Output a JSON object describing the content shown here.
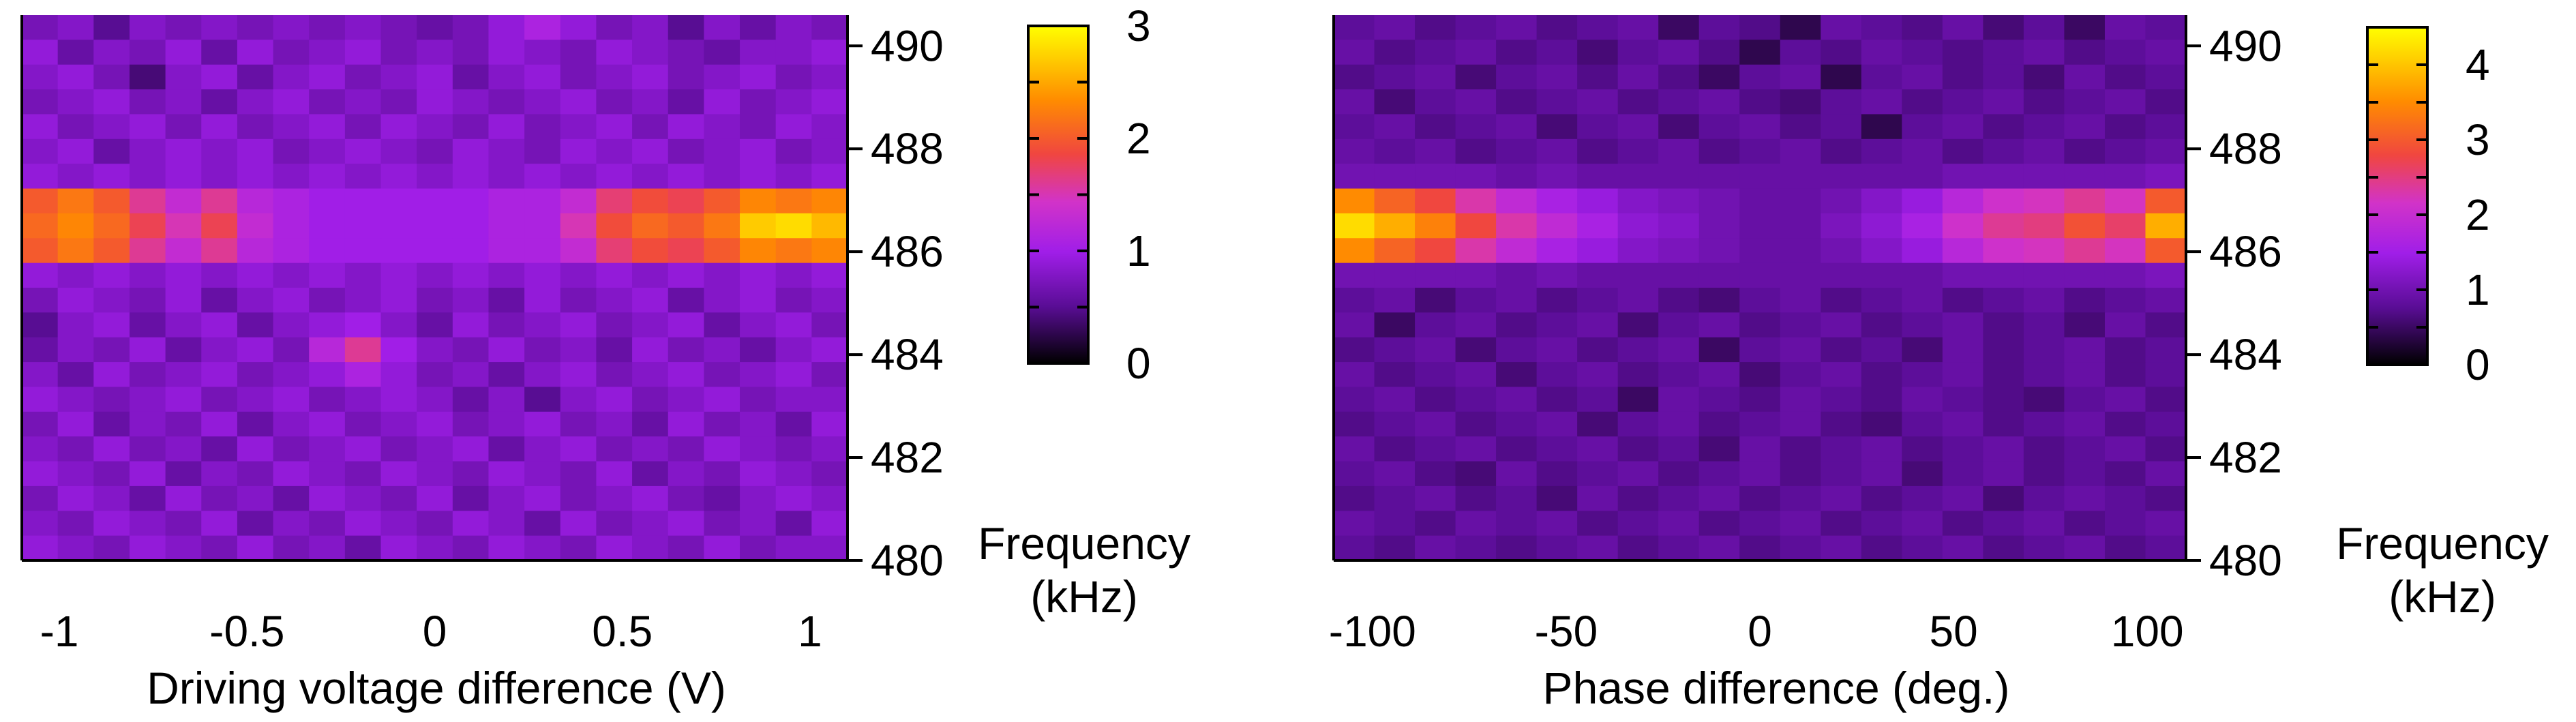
{
  "chart_data": [
    {
      "type": "heatmap",
      "name": "left",
      "xlabel": "Driving voltage difference (V)",
      "ylabel": "Frequency (kHz)",
      "ylabel_lines": [
        "Frequency",
        "(kHz)"
      ],
      "xlim": [
        -1.1,
        1.1
      ],
      "ylim": [
        480,
        490.6
      ],
      "x_ticks": [
        -1,
        -0.5,
        0,
        0.5,
        1
      ],
      "x_tick_labels": [
        "-1",
        "-0.5",
        "0",
        "0.5",
        "1"
      ],
      "y_ticks": [
        480,
        482,
        484,
        486,
        488,
        490
      ],
      "y_tick_labels": [
        "480",
        "482",
        "484",
        "486",
        "488",
        "490"
      ],
      "colorbar": {
        "range": [
          0,
          3
        ],
        "ticks": [
          0,
          1,
          2,
          3
        ],
        "tick_labels": [
          "0",
          "1",
          "2",
          "3"
        ],
        "minor_ticks": [
          0.5,
          1.5,
          2.5
        ]
      },
      "x_columns": [
        -1.1,
        -1.0,
        -0.9,
        -0.8,
        -0.7,
        -0.6,
        -0.5,
        -0.4,
        -0.3,
        -0.2,
        -0.1,
        0.0,
        0.1,
        0.2,
        0.3,
        0.4,
        0.5,
        0.6,
        0.7,
        0.8,
        0.9,
        1.0,
        1.1
      ],
      "y_rows": [
        490.5,
        490,
        489.5,
        489,
        488.5,
        488,
        487.5,
        487,
        486.5,
        486,
        485.5,
        485,
        484.5,
        484,
        483.5,
        483,
        482.5,
        482,
        481.5,
        481,
        480.5,
        480
      ],
      "z": [
        [
          0.7,
          0.8,
          0.5,
          0.8,
          0.7,
          0.8,
          0.7,
          0.8,
          0.7,
          0.8,
          0.7,
          0.6,
          0.7,
          0.9,
          1.1,
          0.9,
          0.7,
          0.8,
          0.5,
          0.8,
          0.6,
          0.8,
          0.7
        ],
        [
          0.9,
          0.6,
          0.8,
          0.7,
          0.9,
          0.6,
          0.9,
          0.7,
          0.8,
          0.9,
          0.7,
          0.8,
          0.7,
          0.9,
          0.8,
          0.7,
          0.9,
          0.8,
          0.7,
          0.6,
          0.8,
          0.8,
          0.9
        ],
        [
          0.8,
          0.9,
          0.7,
          0.4,
          0.8,
          0.9,
          0.6,
          0.8,
          0.9,
          0.7,
          0.8,
          0.9,
          0.6,
          0.8,
          0.9,
          0.7,
          0.8,
          0.9,
          0.7,
          0.8,
          0.9,
          0.7,
          0.8
        ],
        [
          0.7,
          0.8,
          0.9,
          0.7,
          0.8,
          0.6,
          0.8,
          0.9,
          0.7,
          0.8,
          0.7,
          0.9,
          0.8,
          0.7,
          0.8,
          0.9,
          0.7,
          0.8,
          0.6,
          0.9,
          0.7,
          0.8,
          0.9
        ],
        [
          0.9,
          0.7,
          0.8,
          0.9,
          0.7,
          0.9,
          0.7,
          0.8,
          0.9,
          0.7,
          0.9,
          0.8,
          0.7,
          0.9,
          0.7,
          0.8,
          0.9,
          0.7,
          0.9,
          0.8,
          0.7,
          0.9,
          0.8
        ],
        [
          0.8,
          0.9,
          0.6,
          0.8,
          0.9,
          0.8,
          0.9,
          0.7,
          0.8,
          0.9,
          0.8,
          0.7,
          0.9,
          0.8,
          0.7,
          0.9,
          0.8,
          0.9,
          0.7,
          0.8,
          0.9,
          0.7,
          0.8
        ],
        [
          0.9,
          0.8,
          0.9,
          0.8,
          0.9,
          0.8,
          0.9,
          0.8,
          0.9,
          0.8,
          0.9,
          0.8,
          0.9,
          0.8,
          0.9,
          0.8,
          0.9,
          0.8,
          0.9,
          0.8,
          0.9,
          0.8,
          0.9
        ],
        [
          2.0,
          2.2,
          2.0,
          1.6,
          1.3,
          1.6,
          1.2,
          1.1,
          1.0,
          1.0,
          1.0,
          1.0,
          1.0,
          1.1,
          1.1,
          1.3,
          1.7,
          1.9,
          1.8,
          2.0,
          2.3,
          2.2,
          2.3
        ],
        [
          2.1,
          2.3,
          2.1,
          1.8,
          1.5,
          1.8,
          1.3,
          1.1,
          1.0,
          1.0,
          1.0,
          1.0,
          1.0,
          1.1,
          1.1,
          1.5,
          1.9,
          2.1,
          2.0,
          2.2,
          2.7,
          2.8,
          2.6
        ],
        [
          2.0,
          2.2,
          2.0,
          1.6,
          1.3,
          1.6,
          1.2,
          1.1,
          1.0,
          1.0,
          1.0,
          1.0,
          1.0,
          1.1,
          1.1,
          1.3,
          1.7,
          1.9,
          1.8,
          2.0,
          2.3,
          2.2,
          2.3
        ],
        [
          0.9,
          0.8,
          0.9,
          0.8,
          0.9,
          0.8,
          0.9,
          0.8,
          0.9,
          0.8,
          0.9,
          0.8,
          0.9,
          0.8,
          0.9,
          0.8,
          0.9,
          0.8,
          0.9,
          0.8,
          0.9,
          0.8,
          0.9
        ],
        [
          0.7,
          0.9,
          0.8,
          0.7,
          0.9,
          0.6,
          0.8,
          0.9,
          0.7,
          0.8,
          0.9,
          0.7,
          0.8,
          0.6,
          0.9,
          0.7,
          0.8,
          0.9,
          0.6,
          0.8,
          0.9,
          0.7,
          0.8
        ],
        [
          0.5,
          0.8,
          0.9,
          0.6,
          0.8,
          0.9,
          0.6,
          0.8,
          0.9,
          1.0,
          0.8,
          0.6,
          0.9,
          0.7,
          0.8,
          0.9,
          0.7,
          0.8,
          0.9,
          0.6,
          0.8,
          0.9,
          0.7
        ],
        [
          0.6,
          0.8,
          0.7,
          0.9,
          0.6,
          0.8,
          0.9,
          0.7,
          1.2,
          1.6,
          1.0,
          0.8,
          0.7,
          0.9,
          0.7,
          0.8,
          0.6,
          0.9,
          0.7,
          0.8,
          0.6,
          0.8,
          0.9
        ],
        [
          0.8,
          0.6,
          0.9,
          0.7,
          0.8,
          0.9,
          0.7,
          0.8,
          0.9,
          1.1,
          0.9,
          0.7,
          0.8,
          0.6,
          0.8,
          0.9,
          0.7,
          0.8,
          0.9,
          0.7,
          0.8,
          0.9,
          0.7
        ],
        [
          0.9,
          0.8,
          0.7,
          0.8,
          0.9,
          0.7,
          0.8,
          0.9,
          0.7,
          0.8,
          0.9,
          0.8,
          0.6,
          0.8,
          0.5,
          0.8,
          0.9,
          0.7,
          0.8,
          0.9,
          0.7,
          0.8,
          0.8
        ],
        [
          0.7,
          0.9,
          0.6,
          0.8,
          0.7,
          0.9,
          0.6,
          0.8,
          0.9,
          0.7,
          0.8,
          0.9,
          0.7,
          0.8,
          0.9,
          0.7,
          0.8,
          0.6,
          0.9,
          0.7,
          0.8,
          0.6,
          0.9
        ],
        [
          0.8,
          0.7,
          0.9,
          0.7,
          0.8,
          0.6,
          0.9,
          0.7,
          0.8,
          0.9,
          0.7,
          0.8,
          0.9,
          0.6,
          0.8,
          0.9,
          0.7,
          0.8,
          0.7,
          0.9,
          0.8,
          0.7,
          0.8
        ],
        [
          0.9,
          0.8,
          0.7,
          0.9,
          0.6,
          0.8,
          0.7,
          0.9,
          0.8,
          0.7,
          0.9,
          0.8,
          0.7,
          0.9,
          0.8,
          0.7,
          0.9,
          0.6,
          0.8,
          0.7,
          0.9,
          0.8,
          0.7
        ],
        [
          0.7,
          0.9,
          0.8,
          0.6,
          0.9,
          0.7,
          0.8,
          0.6,
          0.9,
          0.8,
          0.7,
          0.9,
          0.6,
          0.8,
          0.9,
          0.7,
          0.8,
          0.9,
          0.7,
          0.6,
          0.8,
          0.9,
          0.8
        ],
        [
          0.8,
          0.7,
          0.9,
          0.8,
          0.7,
          0.9,
          0.6,
          0.8,
          0.7,
          0.9,
          0.8,
          0.7,
          0.9,
          0.8,
          0.6,
          0.9,
          0.7,
          0.8,
          0.9,
          0.7,
          0.8,
          0.6,
          0.9
        ],
        [
          0.9,
          0.8,
          0.7,
          0.9,
          0.8,
          0.7,
          0.9,
          0.7,
          0.8,
          0.6,
          0.9,
          0.8,
          0.7,
          0.9,
          0.8,
          0.7,
          0.9,
          0.8,
          0.7,
          0.9,
          0.7,
          0.8,
          0.8
        ]
      ]
    },
    {
      "type": "heatmap",
      "name": "right",
      "xlabel": "Phase difference (deg.)",
      "ylabel": "Frequency (kHz)",
      "ylabel_lines": [
        "Frequency",
        "(kHz)"
      ],
      "xlim": [
        -110,
        110
      ],
      "ylim": [
        480,
        490.6
      ],
      "x_ticks": [
        -100,
        -50,
        0,
        50,
        100
      ],
      "x_tick_labels": [
        "-100",
        "-50",
        "0",
        "50",
        "100"
      ],
      "y_ticks": [
        480,
        482,
        484,
        486,
        488,
        490
      ],
      "y_tick_labels": [
        "480",
        "482",
        "484",
        "486",
        "488",
        "490"
      ],
      "colorbar": {
        "range": [
          0,
          4.5
        ],
        "ticks": [
          0,
          1,
          2,
          3,
          4
        ],
        "tick_labels": [
          "0",
          "1",
          "2",
          "3",
          "4"
        ],
        "minor_ticks": [
          0.5,
          1.5,
          2.5,
          3.5
        ]
      },
      "x_columns": [
        -100,
        -90,
        -80,
        -70,
        -60,
        -50,
        -40,
        -30,
        -20,
        -10,
        0,
        10,
        20,
        30,
        40,
        50,
        60,
        70,
        80,
        90,
        100
      ],
      "y_rows": [
        490.5,
        490,
        489.5,
        489,
        488.5,
        488,
        487.5,
        487,
        486.5,
        486,
        485.5,
        485,
        484.5,
        484,
        483.5,
        483,
        482.5,
        482,
        481.5,
        481,
        480.5,
        480
      ],
      "z": [
        [
          0.8,
          0.9,
          0.7,
          0.8,
          0.9,
          0.7,
          0.8,
          0.9,
          0.5,
          0.8,
          0.7,
          0.4,
          0.9,
          0.8,
          0.7,
          0.9,
          0.6,
          0.8,
          0.5,
          0.9,
          0.8
        ],
        [
          0.9,
          0.7,
          0.8,
          0.9,
          0.7,
          0.8,
          0.6,
          0.8,
          0.9,
          0.7,
          0.4,
          0.8,
          0.7,
          0.9,
          0.8,
          0.7,
          0.8,
          0.9,
          0.7,
          0.8,
          0.9
        ],
        [
          0.7,
          0.8,
          0.9,
          0.6,
          0.8,
          0.9,
          0.7,
          0.9,
          0.7,
          0.5,
          0.8,
          0.9,
          0.4,
          0.8,
          0.9,
          0.7,
          0.8,
          0.6,
          0.9,
          0.7,
          0.8
        ],
        [
          0.9,
          0.6,
          0.8,
          0.9,
          0.7,
          0.8,
          0.9,
          0.7,
          0.8,
          0.9,
          0.7,
          0.6,
          0.8,
          0.9,
          0.7,
          0.8,
          0.9,
          0.7,
          0.8,
          0.9,
          0.7
        ],
        [
          0.8,
          0.9,
          0.7,
          0.8,
          0.9,
          0.6,
          0.8,
          0.9,
          0.6,
          0.8,
          0.9,
          0.7,
          0.8,
          0.4,
          0.8,
          0.9,
          0.7,
          0.8,
          0.9,
          0.7,
          0.8
        ],
        [
          0.9,
          0.8,
          0.9,
          0.7,
          0.8,
          0.9,
          0.7,
          0.8,
          0.9,
          0.7,
          0.8,
          0.9,
          0.7,
          0.8,
          0.9,
          0.7,
          0.8,
          0.9,
          0.7,
          0.8,
          0.9
        ],
        [
          1.0,
          1.0,
          1.0,
          1.0,
          0.9,
          1.0,
          0.9,
          0.9,
          0.9,
          0.9,
          0.9,
          0.9,
          0.9,
          0.9,
          0.9,
          1.0,
          1.0,
          1.0,
          1.0,
          1.0,
          1.1
        ],
        [
          3.5,
          3.1,
          2.8,
          2.3,
          1.9,
          1.6,
          1.4,
          1.2,
          1.1,
          1.0,
          0.9,
          0.9,
          1.0,
          1.2,
          1.4,
          1.8,
          2.1,
          2.2,
          2.4,
          2.2,
          3.0
        ],
        [
          4.2,
          3.8,
          3.4,
          2.8,
          2.3,
          1.9,
          1.6,
          1.3,
          1.2,
          1.0,
          0.9,
          0.9,
          1.1,
          1.3,
          1.6,
          2.1,
          2.4,
          2.5,
          2.9,
          2.6,
          3.8
        ],
        [
          3.5,
          3.1,
          2.8,
          2.3,
          1.9,
          1.6,
          1.4,
          1.2,
          1.1,
          1.0,
          0.9,
          0.9,
          1.0,
          1.2,
          1.4,
          1.8,
          2.1,
          2.2,
          2.4,
          2.2,
          3.0
        ],
        [
          1.0,
          1.0,
          1.0,
          1.0,
          0.9,
          1.0,
          0.9,
          0.9,
          0.9,
          0.9,
          0.9,
          0.9,
          0.9,
          0.9,
          0.9,
          1.0,
          1.0,
          1.0,
          1.0,
          1.0,
          1.1
        ],
        [
          0.8,
          0.9,
          0.6,
          0.8,
          0.9,
          0.7,
          0.8,
          0.9,
          0.7,
          0.6,
          0.8,
          0.9,
          0.7,
          0.8,
          0.9,
          0.7,
          0.8,
          0.9,
          0.7,
          0.8,
          0.9
        ],
        [
          0.9,
          0.5,
          0.8,
          0.9,
          0.7,
          0.8,
          0.9,
          0.6,
          0.8,
          0.9,
          0.7,
          0.8,
          0.9,
          0.7,
          0.8,
          0.9,
          0.7,
          0.8,
          0.6,
          0.9,
          0.7
        ],
        [
          0.7,
          0.8,
          0.9,
          0.6,
          0.8,
          0.9,
          0.7,
          0.8,
          0.9,
          0.5,
          0.8,
          0.9,
          0.7,
          0.8,
          0.6,
          0.9,
          0.7,
          0.8,
          0.9,
          0.7,
          0.8
        ],
        [
          0.9,
          0.7,
          0.8,
          0.9,
          0.6,
          0.8,
          0.9,
          0.7,
          0.8,
          0.9,
          0.6,
          0.8,
          0.9,
          0.7,
          0.8,
          0.9,
          0.7,
          0.8,
          0.9,
          0.7,
          0.8
        ],
        [
          0.8,
          0.9,
          0.7,
          0.8,
          0.9,
          0.7,
          0.8,
          0.5,
          0.9,
          0.8,
          0.7,
          0.9,
          0.8,
          0.7,
          0.9,
          0.8,
          0.7,
          0.6,
          0.8,
          0.9,
          0.7
        ],
        [
          0.7,
          0.8,
          0.9,
          0.7,
          0.8,
          0.9,
          0.6,
          0.8,
          0.9,
          0.7,
          0.8,
          0.9,
          0.7,
          0.6,
          0.8,
          0.9,
          0.7,
          0.8,
          0.9,
          0.7,
          0.8
        ],
        [
          0.9,
          0.7,
          0.8,
          0.9,
          0.7,
          0.8,
          0.9,
          0.7,
          0.8,
          0.6,
          0.9,
          0.7,
          0.8,
          0.9,
          0.7,
          0.8,
          0.9,
          0.7,
          0.8,
          0.9,
          0.7
        ],
        [
          0.8,
          0.9,
          0.7,
          0.6,
          0.9,
          0.7,
          0.8,
          0.9,
          0.7,
          0.8,
          0.9,
          0.7,
          0.8,
          0.9,
          0.6,
          0.8,
          0.9,
          0.7,
          0.8,
          0.7,
          0.9
        ],
        [
          0.7,
          0.8,
          0.9,
          0.7,
          0.8,
          0.6,
          0.9,
          0.7,
          0.8,
          0.9,
          0.7,
          0.8,
          0.9,
          0.7,
          0.8,
          0.9,
          0.6,
          0.8,
          0.9,
          0.8,
          0.7
        ],
        [
          0.9,
          0.8,
          0.7,
          0.9,
          0.8,
          0.9,
          0.7,
          0.8,
          0.9,
          0.7,
          0.8,
          0.9,
          0.7,
          0.8,
          0.9,
          0.7,
          0.8,
          0.9,
          0.7,
          0.8,
          0.9
        ],
        [
          0.8,
          0.7,
          0.9,
          0.8,
          0.7,
          0.8,
          0.9,
          0.7,
          0.8,
          0.9,
          0.7,
          0.8,
          0.9,
          0.7,
          0.8,
          0.9,
          0.7,
          0.8,
          0.9,
          0.7,
          0.8
        ]
      ]
    }
  ]
}
